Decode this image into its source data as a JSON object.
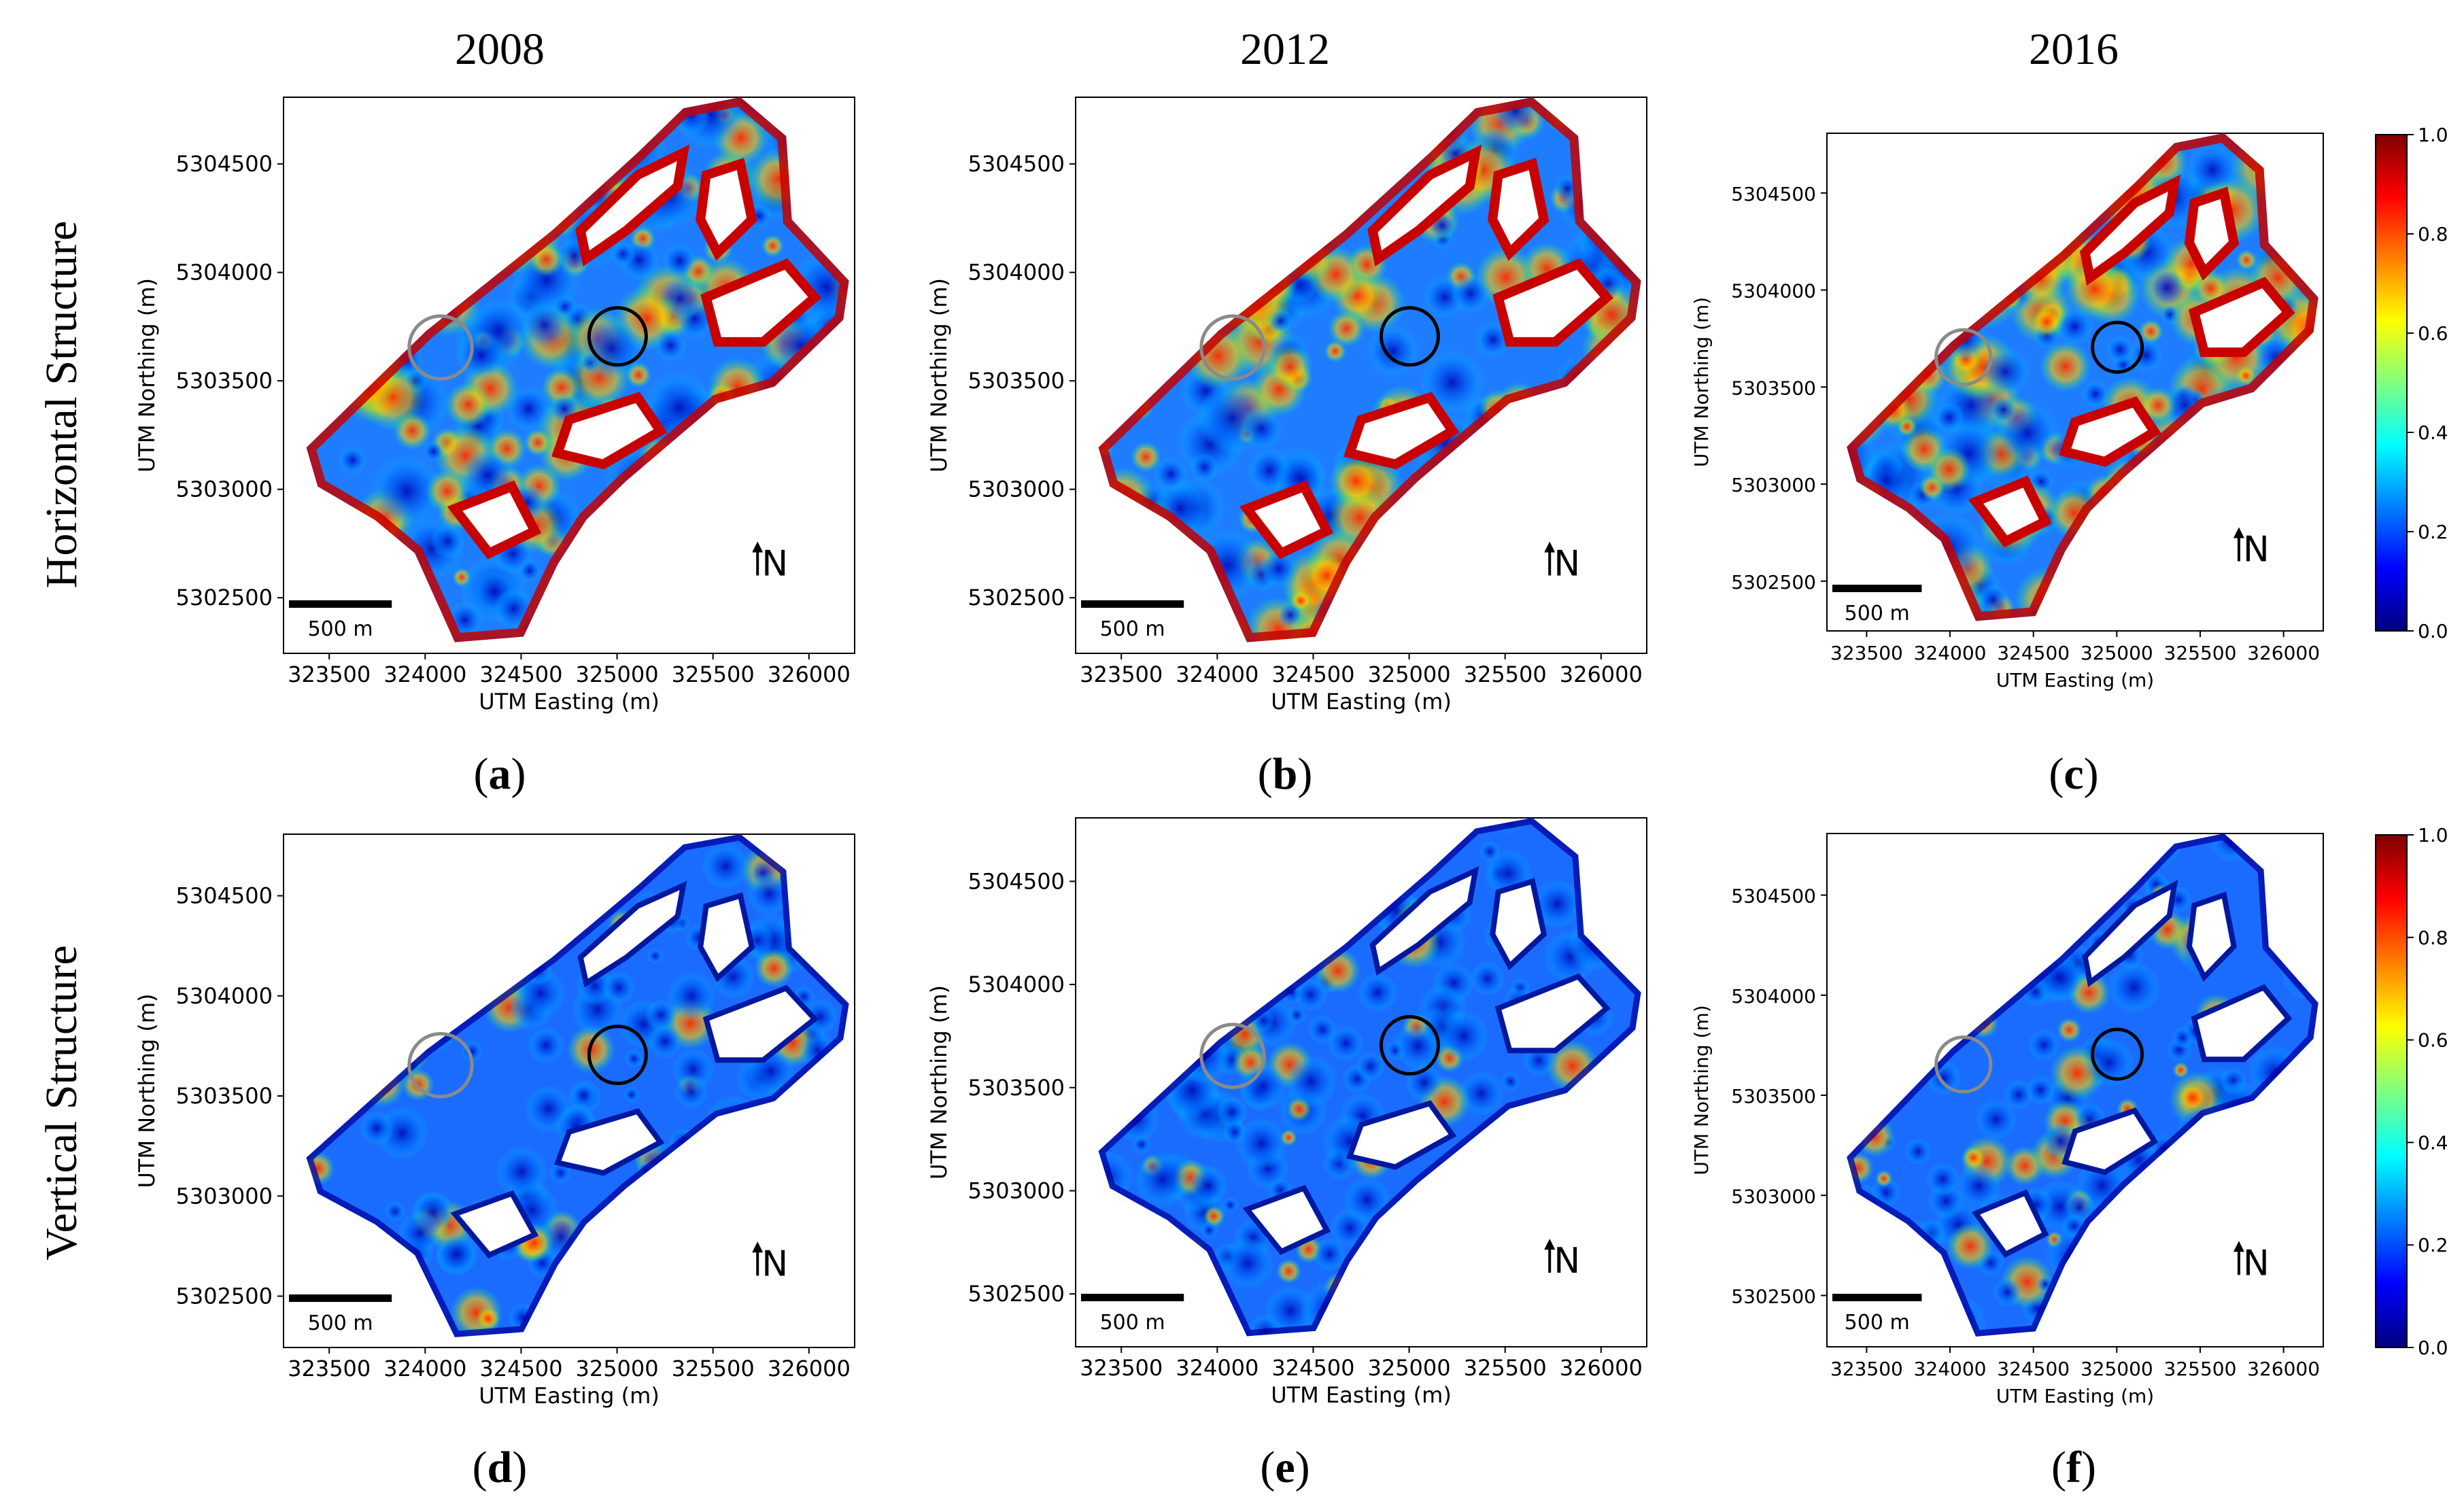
{
  "figure": {
    "columns": [
      "2008",
      "2012",
      "2016"
    ],
    "rows": [
      "Horizontal Structure",
      "Vertical Structure"
    ],
    "panel_labels": [
      "a",
      "b",
      "c",
      "d",
      "e",
      "f"
    ],
    "axes": {
      "xlabel": "UTM Easting (m)",
      "ylabel": "UTM Northing (m)",
      "xticks": [
        "323500",
        "324000",
        "324500",
        "325000",
        "325500",
        "326000"
      ],
      "yticks": [
        "5304500",
        "5304000",
        "5303500",
        "5303000",
        "5302500"
      ]
    },
    "scale_bar": "500 m",
    "north_arrow": "N",
    "colorbar": {
      "ticks": [
        "1.0",
        "0.8",
        "0.6",
        "0.4",
        "0.2",
        "0.0"
      ],
      "range": [
        0.0,
        1.0
      ],
      "colormap": "jet"
    },
    "markers": {
      "gray_circle_color": "#8a8a8a",
      "black_circle_color": "#000000"
    }
  }
}
